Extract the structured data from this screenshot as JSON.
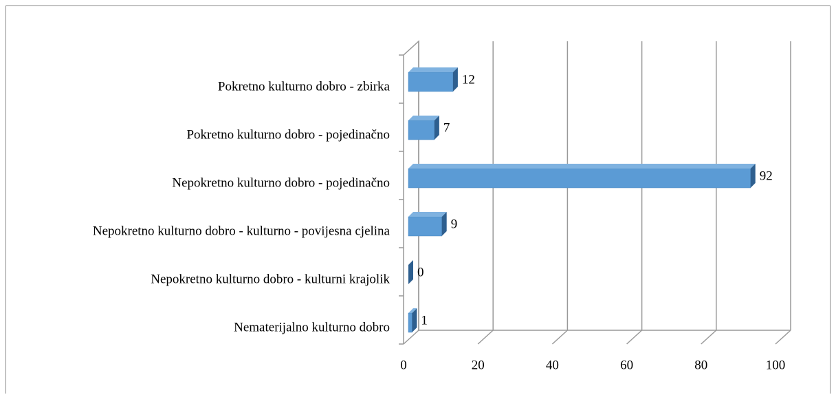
{
  "chart_data": {
    "type": "bar",
    "orientation": "horizontal",
    "three_d": true,
    "categories": [
      "Pokretno kulturno dobro - zbirka",
      "Pokretno kulturno dobro - pojedinačno",
      "Nepokretno kulturno dobro - pojedinačno",
      "Nepokretno kulturno dobro - kulturno - povijesna cjelina",
      "Nepokretno kulturno dobro - kulturni krajolik",
      "Nematerijalno kulturno dobro"
    ],
    "values": [
      12,
      7,
      92,
      9,
      0,
      1
    ],
    "color": "#5b9bd5",
    "xlim": [
      0,
      100
    ],
    "xticks": [
      0,
      20,
      40,
      60,
      80,
      100
    ],
    "grid": true
  }
}
